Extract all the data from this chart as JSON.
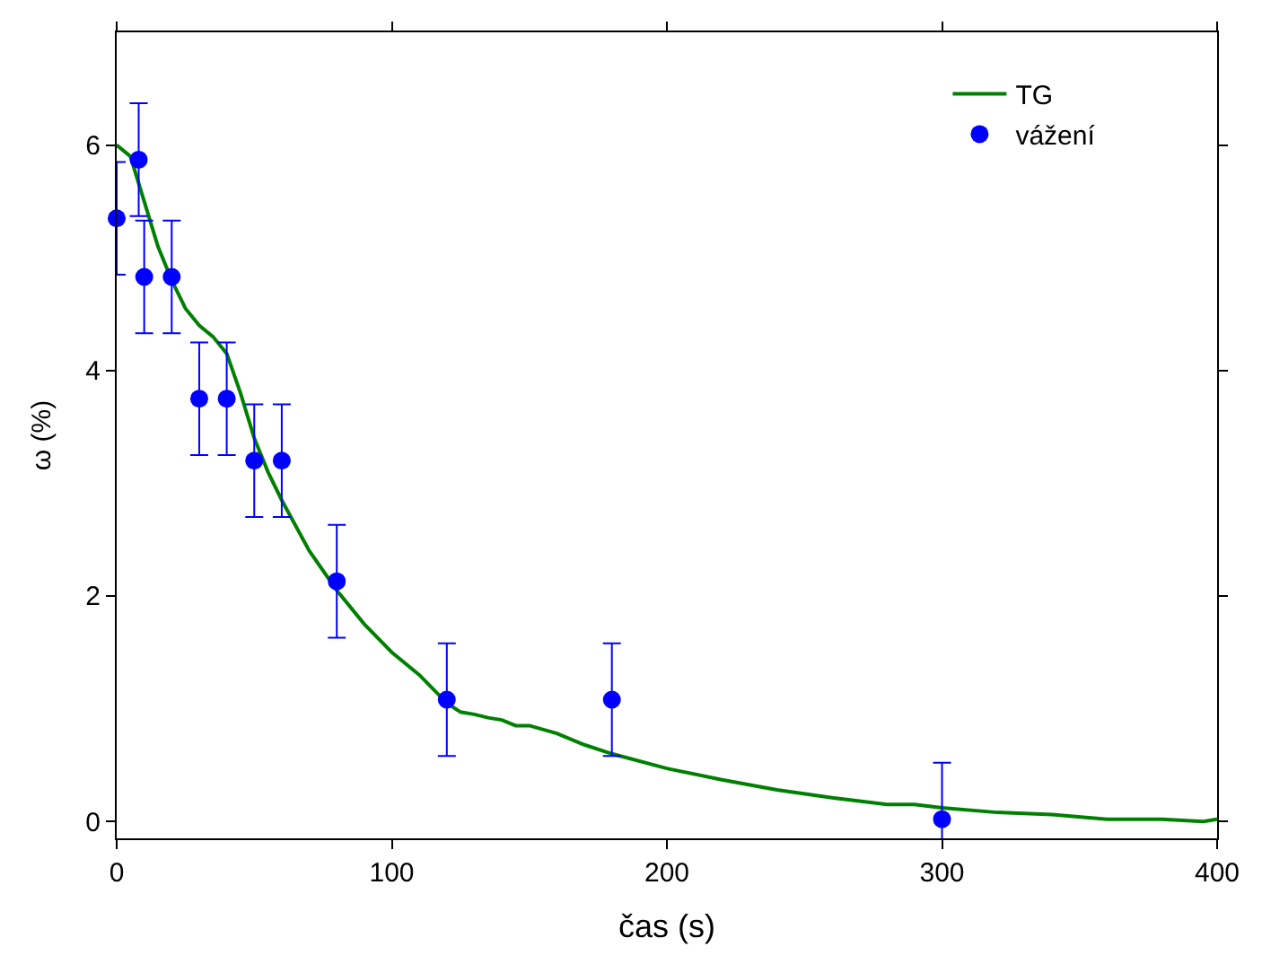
{
  "chart_data": {
    "type": "scatter",
    "xlabel": "čas (s)",
    "ylabel": "ω (%)",
    "xlim": [
      0,
      400
    ],
    "ylim": [
      -0.15,
      7
    ],
    "xticks": [
      0,
      100,
      200,
      300,
      400
    ],
    "yticks": [
      0,
      2,
      4,
      6
    ],
    "grid": false,
    "legend": "top right",
    "series": [
      {
        "name": "TG",
        "type": "line",
        "color": "#008000",
        "marker": "none",
        "line_style": "solid",
        "x": [
          0,
          5,
          10,
          15,
          20,
          25,
          30,
          35,
          40,
          45,
          50,
          55,
          60,
          70,
          80,
          90,
          100,
          110,
          120,
          125,
          130,
          135,
          140,
          145,
          150,
          160,
          170,
          180,
          200,
          220,
          240,
          260,
          280,
          290,
          300,
          320,
          340,
          360,
          380,
          395,
          400
        ],
        "values": [
          6.0,
          5.9,
          5.5,
          5.1,
          4.8,
          4.55,
          4.4,
          4.3,
          4.15,
          3.8,
          3.4,
          3.1,
          2.85,
          2.4,
          2.05,
          1.75,
          1.5,
          1.3,
          1.05,
          0.97,
          0.95,
          0.92,
          0.9,
          0.85,
          0.85,
          0.78,
          0.68,
          0.6,
          0.47,
          0.37,
          0.28,
          0.21,
          0.15,
          0.15,
          0.12,
          0.08,
          0.06,
          0.02,
          0.02,
          0.0,
          0.02
        ]
      },
      {
        "name": "vážení",
        "color": "#0000ff",
        "marker": "circle",
        "x": [
          0,
          8,
          10,
          20,
          30,
          40,
          50,
          60,
          80,
          120,
          180,
          300
        ],
        "values": [
          5.35,
          5.87,
          4.83,
          4.83,
          3.75,
          3.75,
          3.2,
          3.2,
          2.13,
          1.08,
          1.08,
          0.02
        ],
        "errors": [
          0.5,
          0.5,
          0.5,
          0.5,
          0.5,
          0.5,
          0.5,
          0.5,
          0.5,
          0.5,
          0.5,
          0.5
        ]
      }
    ]
  }
}
